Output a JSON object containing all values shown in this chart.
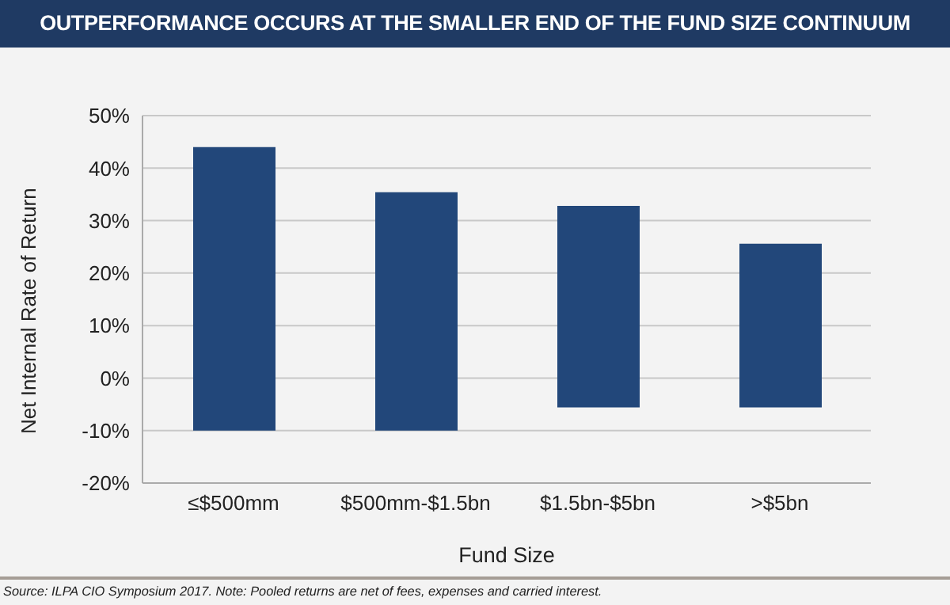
{
  "chart_data": {
    "type": "bar",
    "title": "OUTPERFORMANCE OCCURS AT THE SMALLER END OF THE FUND SIZE CONTINUUM",
    "xlabel": "Fund Size",
    "ylabel": "Net Internal Rate of Return",
    "categories": [
      "≤$500mm",
      "$500mm-$1.5bn",
      "$1.5bn-$5bn",
      ">$5bn"
    ],
    "values": [
      54,
      45.4,
      38.4,
      31.2
    ],
    "base": [
      -10,
      -10,
      -5.6,
      -5.6
    ],
    "color": "#22477a",
    "ylim": [
      -20,
      50
    ],
    "yticks": [
      {
        "value": -20,
        "label": "-20%"
      },
      {
        "value": -10,
        "label": "-10%"
      },
      {
        "value": 0,
        "label": "0%"
      },
      {
        "value": 10,
        "label": "10%"
      },
      {
        "value": 20,
        "label": "20%"
      },
      {
        "value": 30,
        "label": "30%"
      },
      {
        "value": 40,
        "label": "40%"
      },
      {
        "value": 50,
        "label": "50%"
      }
    ],
    "grid": "y",
    "annotations": [
      "Source: ILPA CIO Symposium 2017.  Note: Pooled returns are net of fees, expenses and carried interest."
    ]
  }
}
